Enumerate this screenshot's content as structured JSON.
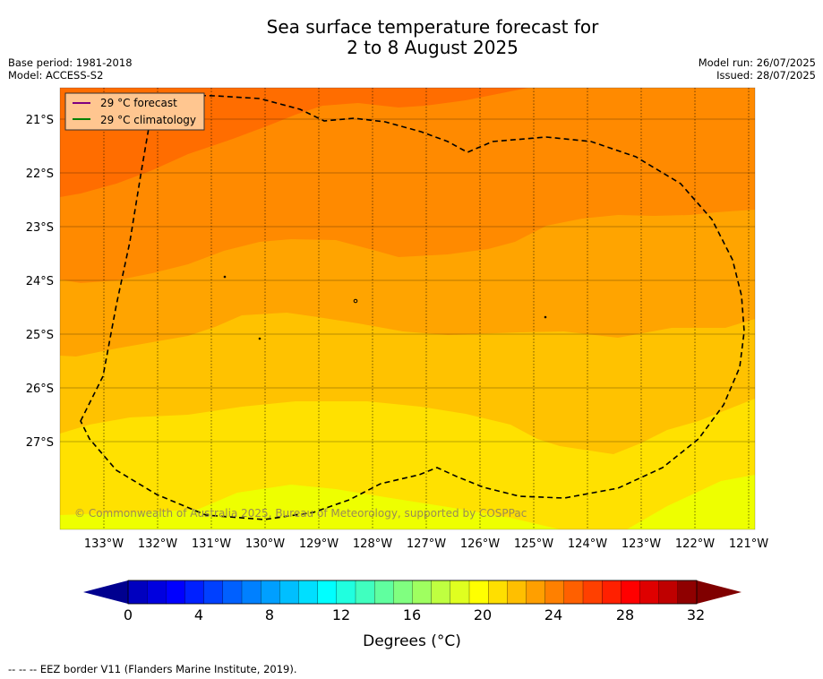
{
  "title": {
    "line1": "Sea surface temperature forecast for",
    "line2": "2 to 8 August 2025"
  },
  "header_left": {
    "base_period": "Base period: 1981-2018",
    "model": "Model: ACCESS-S2"
  },
  "header_right": {
    "model_run": "Model run: 26/07/2025",
    "issued": "Issued: 28/07/2025"
  },
  "map": {
    "lat_labels": [
      "21°S",
      "22°S",
      "23°S",
      "24°S",
      "25°S",
      "26°S",
      "27°S"
    ],
    "lon_labels": [
      "133°W",
      "132°W",
      "131°W",
      "130°W",
      "129°W",
      "128°W",
      "127°W",
      "126°W",
      "125°W",
      "124°W",
      "123°W",
      "122°W",
      "121°W"
    ],
    "copyright": "© Commonwealth of Australia 2025, Bureau of Meteorology, supported by COSPPac",
    "legend": [
      {
        "label": "29 °C  forecast",
        "color": "#800080"
      },
      {
        "label": "29 °C  climatology",
        "color": "#008000"
      }
    ],
    "band_colors": [
      "#ff6d00",
      "#ff8a00",
      "#ffa400",
      "#ffc200",
      "#ffe100",
      "#eeff00"
    ]
  },
  "colorbar": {
    "tick_labels": [
      "0",
      "4",
      "8",
      "12",
      "16",
      "20",
      "24",
      "28",
      "32"
    ],
    "label": "Degrees (°C)",
    "colors": [
      "#00008f",
      "#0000bf",
      "#0000df",
      "#0000ff",
      "#0020ff",
      "#0040ff",
      "#0060ff",
      "#0080ff",
      "#009fff",
      "#00bfff",
      "#00dfff",
      "#00ffff",
      "#20ffdf",
      "#40ffbf",
      "#60ff9f",
      "#80ff80",
      "#9fff60",
      "#bfff40",
      "#dfff20",
      "#ffff00",
      "#ffdf00",
      "#ffbf00",
      "#ff9f00",
      "#ff8000",
      "#ff6000",
      "#ff4000",
      "#ff2000",
      "#ff0000",
      "#df0000",
      "#bf0000",
      "#8f0000",
      "#800000"
    ]
  },
  "footnote": "--  --  -- EEZ border V11 (Flanders Marine Institute, 2019)."
}
